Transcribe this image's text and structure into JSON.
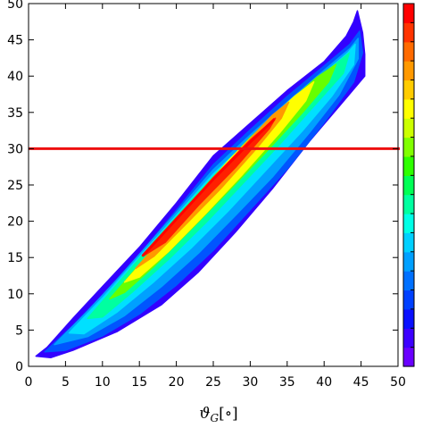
{
  "chart_data": {
    "type": "heatmap",
    "title": "",
    "xlabel": "ϑ_G[∘]",
    "xlabel_parts": {
      "main": "ϑ",
      "sub": "G",
      "unit": "[∘]"
    },
    "ylabel": "",
    "xlim": [
      0,
      50
    ],
    "ylim": [
      0,
      50
    ],
    "xticks": [
      0,
      5,
      10,
      15,
      20,
      25,
      30,
      35,
      40,
      45,
      50
    ],
    "yticks": [
      0,
      5,
      10,
      15,
      20,
      25,
      30,
      35,
      40,
      45,
      50
    ],
    "grid": false,
    "contour_bands": [
      {
        "level": 1,
        "color": "#3300ff",
        "upper": [
          [
            1.0,
            1.4
          ],
          [
            2.5,
            2.6
          ],
          [
            6,
            6.6
          ],
          [
            10,
            11
          ],
          [
            15,
            16.4
          ],
          [
            20,
            22.5
          ],
          [
            25,
            29
          ],
          [
            30,
            33.5
          ],
          [
            35,
            38
          ],
          [
            40,
            42
          ],
          [
            43,
            45.5
          ],
          [
            44,
            47.5
          ],
          [
            44.5,
            49
          ]
        ],
        "lower": [
          [
            44.5,
            49
          ],
          [
            45.2,
            46
          ],
          [
            45.5,
            43
          ],
          [
            45.5,
            40
          ],
          [
            43,
            37
          ],
          [
            38,
            31
          ],
          [
            33,
            24.5
          ],
          [
            28,
            18.5
          ],
          [
            23,
            13
          ],
          [
            18,
            8.5
          ],
          [
            12,
            4.8
          ],
          [
            6,
            2.2
          ],
          [
            3,
            1.2
          ],
          [
            1.0,
            1.4
          ]
        ]
      },
      {
        "level": 2,
        "color": "#0055ff",
        "upper": [
          [
            2.2,
            2.0
          ],
          [
            6,
            5.6
          ],
          [
            10,
            9.8
          ],
          [
            15,
            15.4
          ],
          [
            20,
            21.5
          ],
          [
            25,
            27.8
          ],
          [
            30,
            32.6
          ],
          [
            35,
            37.2
          ],
          [
            40,
            41.4
          ],
          [
            43.5,
            44.4
          ],
          [
            44.8,
            46.2
          ]
        ],
        "lower": [
          [
            44.8,
            46.2
          ],
          [
            45.2,
            43.2
          ],
          [
            44,
            39.2
          ],
          [
            40,
            33.6
          ],
          [
            35,
            27.2
          ],
          [
            30,
            21.6
          ],
          [
            25,
            16
          ],
          [
            20,
            11.2
          ],
          [
            15,
            7.2
          ],
          [
            10,
            4.2
          ],
          [
            5,
            2.2
          ],
          [
            2.2,
            2.0
          ]
        ]
      },
      {
        "level": 3,
        "color": "#00a0ff",
        "upper": [
          [
            3.5,
            3.0
          ],
          [
            8,
            7.6
          ],
          [
            12,
            12
          ],
          [
            16,
            16.6
          ],
          [
            20,
            21.2
          ],
          [
            25,
            27.1
          ],
          [
            30,
            31.9
          ],
          [
            35,
            36.4
          ],
          [
            40,
            40.8
          ],
          [
            43.5,
            43.8
          ],
          [
            44.6,
            45.2
          ]
        ],
        "lower": [
          [
            44.6,
            45.2
          ],
          [
            44.6,
            42.4
          ],
          [
            42,
            37.4
          ],
          [
            38,
            32.2
          ],
          [
            33,
            26.1
          ],
          [
            28,
            20.8
          ],
          [
            23,
            15.6
          ],
          [
            18,
            11
          ],
          [
            13,
            7
          ],
          [
            8,
            4.1
          ],
          [
            3.5,
            3.0
          ]
        ]
      },
      {
        "level": 4,
        "color": "#00e0ff",
        "upper": [
          [
            5.5,
            4.6
          ],
          [
            10,
            9.4
          ],
          [
            15,
            15.1
          ],
          [
            20,
            20.8
          ],
          [
            25,
            26.5
          ],
          [
            30,
            31.3
          ],
          [
            35,
            35.9
          ],
          [
            40,
            40.4
          ],
          [
            43.2,
            43.2
          ],
          [
            44.2,
            44.4
          ]
        ],
        "lower": [
          [
            44.2,
            44.4
          ],
          [
            44,
            41.6
          ],
          [
            41,
            37.2
          ],
          [
            37,
            32.4
          ],
          [
            32,
            26.9
          ],
          [
            27,
            21.4
          ],
          [
            22,
            16.3
          ],
          [
            17,
            11.7
          ],
          [
            12,
            7.5
          ],
          [
            7.5,
            4.5
          ],
          [
            5.5,
            4.6
          ]
        ]
      },
      {
        "level": 5,
        "color": "#00ffa0",
        "upper": [
          [
            8,
            6.6
          ],
          [
            12,
            11.3
          ],
          [
            17,
            17.2
          ],
          [
            22,
            22.9
          ],
          [
            27,
            28.2
          ],
          [
            32,
            33.1
          ],
          [
            37,
            37.6
          ],
          [
            41,
            41.2
          ],
          [
            43.4,
            43.2
          ]
        ],
        "lower": [
          [
            43.4,
            43.2
          ],
          [
            42.6,
            40.4
          ],
          [
            39,
            36.3
          ],
          [
            34,
            30.6
          ],
          [
            29,
            25.2
          ],
          [
            24,
            19.8
          ],
          [
            19,
            14.8
          ],
          [
            14,
            10.2
          ],
          [
            10,
            6.8
          ],
          [
            8,
            6.6
          ]
        ]
      },
      {
        "level": 6,
        "color": "#66ff00",
        "upper": [
          [
            11,
            9.3
          ],
          [
            15,
            14
          ],
          [
            20,
            20.2
          ],
          [
            25,
            26.1
          ],
          [
            30,
            31.5
          ],
          [
            35,
            36.2
          ],
          [
            39,
            39.8
          ],
          [
            41.6,
            41.6
          ]
        ],
        "lower": [
          [
            41.6,
            41.6
          ],
          [
            40.6,
            39.2
          ],
          [
            37,
            34.9
          ],
          [
            32,
            29.4
          ],
          [
            27,
            24.1
          ],
          [
            22,
            18.9
          ],
          [
            17,
            13.8
          ],
          [
            13,
            10.2
          ],
          [
            11,
            9.3
          ]
        ]
      },
      {
        "level": 7,
        "color": "#ffff00",
        "upper": [
          [
            13,
            11.6
          ],
          [
            17,
            16.2
          ],
          [
            22,
            22.4
          ],
          [
            27,
            28.3
          ],
          [
            32,
            33.5
          ],
          [
            36,
            37.2
          ],
          [
            38.6,
            39.2
          ]
        ],
        "lower": [
          [
            38.6,
            39.2
          ],
          [
            37.5,
            36.6
          ],
          [
            34,
            32.2
          ],
          [
            29,
            26.5
          ],
          [
            24,
            21.1
          ],
          [
            19,
            15.9
          ],
          [
            15,
            12.3
          ],
          [
            13,
            11.6
          ]
        ]
      },
      {
        "level": 8,
        "color": "#ff9900",
        "upper": [
          [
            14.5,
            13.5
          ],
          [
            19,
            18.6
          ],
          [
            24,
            24.6
          ],
          [
            29,
            30.3
          ],
          [
            33,
            34.6
          ],
          [
            35.2,
            36.4
          ]
        ],
        "lower": [
          [
            35.2,
            36.4
          ],
          [
            34.2,
            34.2
          ],
          [
            31,
            30.2
          ],
          [
            26,
            24.5
          ],
          [
            21,
            19.3
          ],
          [
            17,
            15.2
          ],
          [
            14.5,
            13.5
          ]
        ]
      },
      {
        "level": 9,
        "color": "#ff2000",
        "upper": [
          [
            15.5,
            15.2
          ],
          [
            20,
            20.2
          ],
          [
            25,
            26
          ],
          [
            30,
            31.2
          ],
          [
            33.4,
            34.2
          ]
        ],
        "lower": [
          [
            33.4,
            34.2
          ],
          [
            32.6,
            32.8
          ],
          [
            28,
            27.4
          ],
          [
            23,
            22.2
          ],
          [
            18.5,
            17.1
          ],
          [
            15.5,
            15.2
          ]
        ]
      }
    ],
    "ridge_line": [
      [
        15.5,
        15.3
      ],
      [
        20,
        20.3
      ],
      [
        25,
        25.8
      ],
      [
        30,
        30.9
      ],
      [
        33.2,
        34.0
      ]
    ],
    "reference_line": {
      "y": 30,
      "color": "#ee1111"
    },
    "colorbar": {
      "ticks_visible": false,
      "colors_bottom_to_top": [
        "#6a00ff",
        "#3c00ff",
        "#0a10ff",
        "#0040ff",
        "#0070ff",
        "#00a0ff",
        "#00d0ff",
        "#00ffe6",
        "#00ffa0",
        "#00ff55",
        "#2eff00",
        "#80ff00",
        "#ccff00",
        "#ffff00",
        "#ffcc00",
        "#ff9900",
        "#ff6a00",
        "#ff3300",
        "#ff0000"
      ]
    }
  }
}
